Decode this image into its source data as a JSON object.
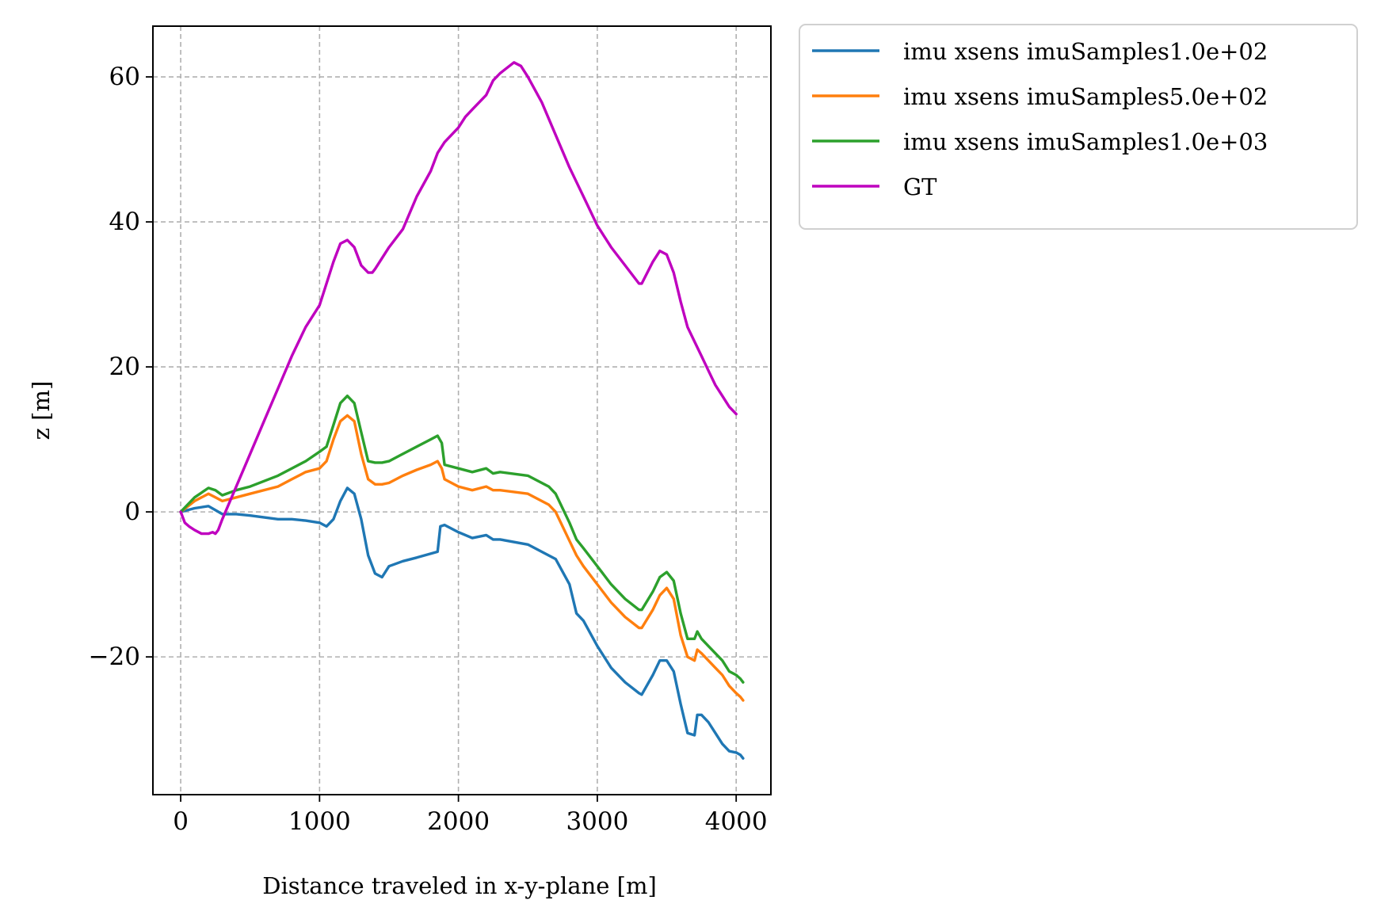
{
  "chart_data": {
    "type": "line",
    "title": "",
    "xlabel": "Distance traveled in x-y-plane [m]",
    "ylabel": "z [m]",
    "xlim": [
      -200,
      4250
    ],
    "ylim": [
      -39,
      67
    ],
    "x_ticks": [
      0,
      1000,
      2000,
      3000,
      4000
    ],
    "x_tick_labels": [
      "0",
      "1000",
      "2000",
      "3000",
      "4000"
    ],
    "y_ticks": [
      -20,
      0,
      20,
      40,
      60
    ],
    "y_tick_labels": [
      "−20",
      "0",
      "20",
      "40",
      "60"
    ],
    "grid": true,
    "legend_position": "outside-upper-right",
    "series": [
      {
        "name": "imu xsens imuSamples1.0e+02",
        "color": "#1f77b4",
        "x": [
          0,
          100,
          200,
          300,
          400,
          500,
          700,
          800,
          900,
          1000,
          1050,
          1100,
          1150,
          1200,
          1250,
          1300,
          1350,
          1400,
          1450,
          1500,
          1600,
          1700,
          1850,
          1870,
          1900,
          2000,
          2100,
          2200,
          2250,
          2300,
          2500,
          2700,
          2800,
          2850,
          2900,
          3000,
          3100,
          3200,
          3300,
          3320,
          3400,
          3450,
          3500,
          3550,
          3600,
          3650,
          3700,
          3720,
          3750,
          3800,
          3850,
          3900,
          3950,
          4000,
          4030,
          4050
        ],
        "y": [
          0,
          0.5,
          0.8,
          -0.3,
          -0.3,
          -0.5,
          -1.0,
          -1.0,
          -1.2,
          -1.5,
          -2.0,
          -1.0,
          1.5,
          3.3,
          2.5,
          -1.0,
          -6.0,
          -8.5,
          -9.0,
          -7.5,
          -6.8,
          -6.3,
          -5.5,
          -2.0,
          -1.8,
          -2.8,
          -3.6,
          -3.2,
          -3.8,
          -3.8,
          -4.5,
          -6.5,
          -10.0,
          -14.0,
          -15.0,
          -18.5,
          -21.5,
          -23.5,
          -25.0,
          -25.2,
          -22.5,
          -20.5,
          -20.5,
          -22.0,
          -26.5,
          -30.5,
          -30.8,
          -28.0,
          -28.0,
          -29.0,
          -30.5,
          -32.0,
          -33.0,
          -33.2,
          -33.5,
          -34.0
        ]
      },
      {
        "name": "imu xsens imuSamples5.0e+02",
        "color": "#ff7f0e",
        "x": [
          0,
          100,
          200,
          250,
          300,
          400,
          500,
          700,
          800,
          900,
          1000,
          1050,
          1100,
          1150,
          1200,
          1250,
          1300,
          1350,
          1400,
          1450,
          1500,
          1600,
          1700,
          1800,
          1850,
          1880,
          1900,
          2000,
          2100,
          2200,
          2250,
          2300,
          2500,
          2650,
          2700,
          2800,
          2850,
          2900,
          3000,
          3100,
          3200,
          3300,
          3320,
          3400,
          3450,
          3500,
          3550,
          3600,
          3650,
          3700,
          3720,
          3750,
          3800,
          3850,
          3900,
          3950,
          4000,
          4030,
          4050
        ],
        "y": [
          0,
          1.5,
          2.5,
          2.0,
          1.5,
          2.0,
          2.5,
          3.5,
          4.5,
          5.5,
          6.0,
          7.0,
          10.0,
          12.5,
          13.3,
          12.5,
          8.0,
          4.5,
          3.8,
          3.8,
          4.0,
          5.0,
          5.8,
          6.5,
          7.0,
          6.0,
          4.5,
          3.5,
          3.0,
          3.5,
          3.0,
          3.0,
          2.5,
          1.0,
          0.0,
          -4.0,
          -6.0,
          -7.5,
          -10.0,
          -12.5,
          -14.5,
          -16.0,
          -16.0,
          -13.5,
          -11.5,
          -10.5,
          -12.0,
          -17.0,
          -20.0,
          -20.5,
          -19.0,
          -19.5,
          -20.5,
          -21.5,
          -22.5,
          -24.0,
          -25.0,
          -25.5,
          -26.0
        ]
      },
      {
        "name": "imu xsens imuSamples1.0e+03",
        "color": "#2ca02c",
        "x": [
          0,
          100,
          200,
          250,
          300,
          400,
          500,
          700,
          800,
          900,
          1000,
          1050,
          1100,
          1150,
          1200,
          1250,
          1300,
          1350,
          1400,
          1450,
          1500,
          1600,
          1700,
          1800,
          1850,
          1880,
          1900,
          2000,
          2100,
          2200,
          2250,
          2300,
          2500,
          2650,
          2700,
          2800,
          2850,
          2900,
          3000,
          3100,
          3200,
          3300,
          3320,
          3400,
          3450,
          3500,
          3550,
          3600,
          3650,
          3700,
          3720,
          3750,
          3800,
          3850,
          3900,
          3950,
          4000,
          4030,
          4050
        ],
        "y": [
          0,
          2.0,
          3.3,
          3.0,
          2.3,
          3.0,
          3.5,
          5.0,
          6.0,
          7.0,
          8.3,
          9.0,
          12.0,
          15.0,
          16.0,
          15.0,
          11.0,
          7.0,
          6.8,
          6.8,
          7.0,
          8.0,
          9.0,
          10.0,
          10.5,
          9.5,
          6.5,
          6.0,
          5.5,
          6.0,
          5.3,
          5.5,
          5.0,
          3.5,
          2.5,
          -1.5,
          -3.8,
          -5.0,
          -7.5,
          -10.0,
          -12.0,
          -13.5,
          -13.5,
          -11.0,
          -9.0,
          -8.3,
          -9.5,
          -14.0,
          -17.5,
          -17.5,
          -16.5,
          -17.5,
          -18.5,
          -19.5,
          -20.5,
          -22.0,
          -22.5,
          -23.0,
          -23.5
        ]
      },
      {
        "name": "GT",
        "color": "#bf00bf",
        "x": [
          0,
          30,
          60,
          100,
          150,
          200,
          230,
          250,
          270,
          300,
          400,
          500,
          600,
          700,
          800,
          900,
          1000,
          1050,
          1100,
          1150,
          1200,
          1250,
          1300,
          1350,
          1380,
          1400,
          1450,
          1500,
          1600,
          1700,
          1800,
          1850,
          1900,
          2000,
          2050,
          2100,
          2200,
          2250,
          2300,
          2400,
          2450,
          2500,
          2600,
          2700,
          2800,
          2850,
          2900,
          3000,
          3100,
          3200,
          3300,
          3320,
          3400,
          3450,
          3500,
          3550,
          3600,
          3650,
          3700,
          3750,
          3800,
          3850,
          3900,
          3950,
          4000
        ],
        "y": [
          0,
          -1.5,
          -2.0,
          -2.5,
          -3.0,
          -3.0,
          -2.8,
          -3.0,
          -2.5,
          -1.0,
          3.5,
          8.0,
          12.5,
          17.0,
          21.5,
          25.5,
          28.5,
          31.5,
          34.5,
          37.0,
          37.5,
          36.5,
          34.0,
          33.0,
          33.0,
          33.5,
          35.0,
          36.5,
          39.0,
          43.5,
          47.0,
          49.5,
          51.0,
          53.0,
          54.5,
          55.5,
          57.5,
          59.5,
          60.5,
          62.0,
          61.5,
          60.0,
          56.5,
          52.0,
          47.5,
          45.5,
          43.5,
          39.5,
          36.5,
          34.0,
          31.5,
          31.5,
          34.5,
          36.0,
          35.5,
          33.0,
          29.0,
          25.5,
          23.5,
          21.5,
          19.5,
          17.5,
          16.0,
          14.5,
          13.5
        ]
      }
    ]
  }
}
